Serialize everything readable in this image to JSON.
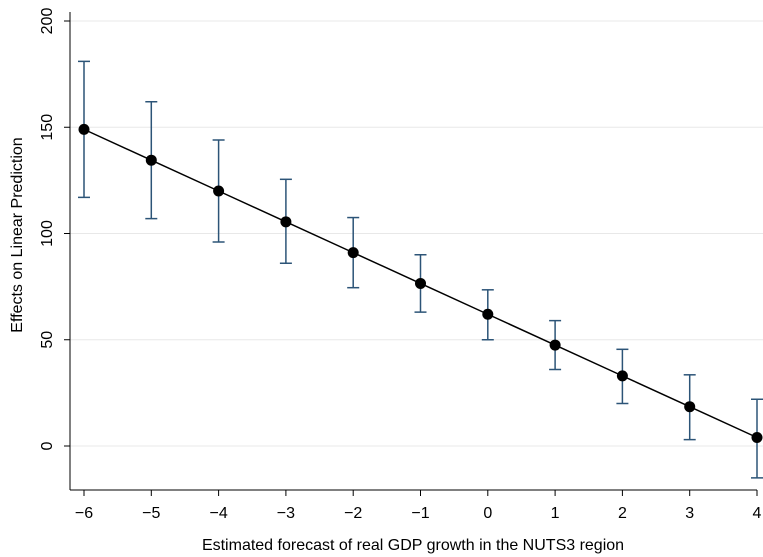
{
  "chart_data": {
    "type": "line",
    "xlabel": "Estimated forecast of real GDP growth in the NUTS3 region",
    "ylabel": "Effects on Linear Prediction",
    "xlim": [
      -6,
      4
    ],
    "ylim": [
      -20,
      200
    ],
    "xticks": [
      -6,
      -5,
      -4,
      -3,
      -2,
      -1,
      0,
      1,
      2,
      3,
      4
    ],
    "xtick_labels": [
      "−6",
      "−5",
      "−4",
      "−3",
      "−2",
      "−1",
      "0",
      "1",
      "2",
      "3",
      "4"
    ],
    "yticks": [
      0,
      50,
      100,
      150,
      200
    ],
    "ytick_labels": [
      "0",
      "50",
      "100",
      "150",
      "200"
    ],
    "grid": true,
    "legend": "none",
    "x": [
      -6,
      -5,
      -4,
      -3,
      -2,
      -1,
      0,
      1,
      2,
      3,
      4
    ],
    "series": [
      {
        "values": [
          149,
          134.5,
          120,
          105.5,
          91,
          76.5,
          62,
          47.5,
          33,
          18.5,
          4
        ],
        "ci_low": [
          117,
          107,
          96,
          86,
          74.5,
          63,
          50,
          36,
          20,
          3,
          -15
        ],
        "ci_high": [
          181,
          162,
          144,
          125.5,
          107.5,
          90,
          73.5,
          59,
          45.5,
          33.5,
          22
        ],
        "color": "#000000",
        "ci_color": "#2c5477"
      }
    ]
  }
}
